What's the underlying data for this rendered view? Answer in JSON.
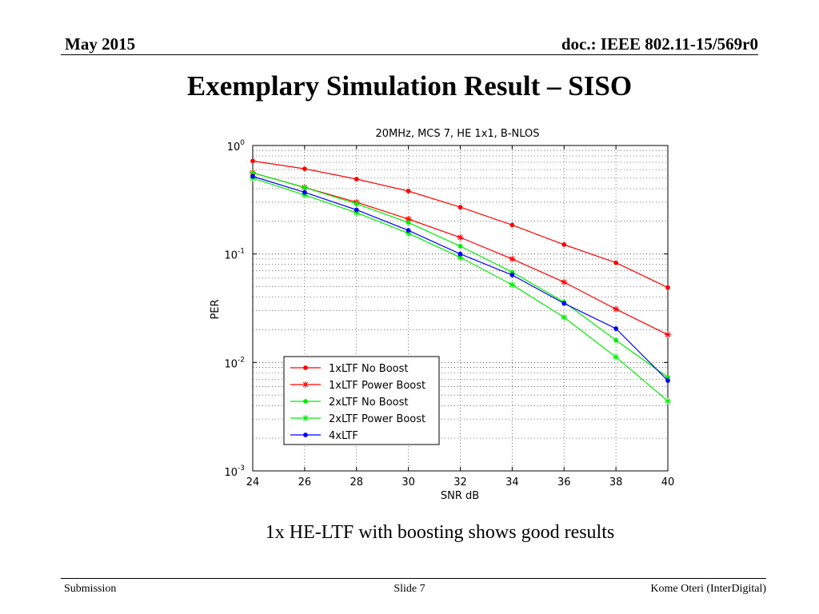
{
  "header": {
    "date": "May 2015",
    "doc_id": "doc.: IEEE 802.11-15/569r0"
  },
  "slide": {
    "title": "Exemplary Simulation Result – SISO",
    "caption": "1x HE-LTF with boosting shows good results"
  },
  "footer": {
    "left": "Submission",
    "center": "Slide 7",
    "right": "Kome Oteri (InterDigital)"
  },
  "chart_data": {
    "type": "line",
    "title": "20MHz, MCS 7, HE 1x1, B-NLOS",
    "xlabel": "SNR dB",
    "ylabel": "PER",
    "x_scale": "linear",
    "y_scale": "log",
    "xlim": [
      24,
      40
    ],
    "ylim": [
      0.001,
      1
    ],
    "grid": true,
    "legend_position": "bottom-left",
    "x_ticks": [
      "24",
      "26",
      "28",
      "30",
      "32",
      "34",
      "36",
      "38",
      "40"
    ],
    "y_ticks": [
      {
        "value": 1,
        "base": "10",
        "exp": "0"
      },
      {
        "value": 0.1,
        "base": "10",
        "exp": "-1"
      },
      {
        "value": 0.01,
        "base": "10",
        "exp": "-2"
      },
      {
        "value": 0.001,
        "base": "10",
        "exp": "-3"
      }
    ],
    "series": [
      {
        "name": "1xLTF No Boost",
        "color": "#ff0000",
        "marker": "dot",
        "x": [
          24,
          26,
          28,
          30,
          32,
          34,
          36,
          38,
          40
        ],
        "y": [
          0.72,
          0.61,
          0.49,
          0.38,
          0.27,
          0.185,
          0.122,
          0.083,
          0.049
        ]
      },
      {
        "name": "1xLTF Power Boost",
        "color": "#ff0000",
        "marker": "star",
        "x": [
          24,
          26,
          28,
          30,
          32,
          34,
          36,
          38,
          40
        ],
        "y": [
          0.56,
          0.41,
          0.3,
          0.21,
          0.142,
          0.09,
          0.055,
          0.031,
          0.018
        ]
      },
      {
        "name": "2xLTF No Boost",
        "color": "#00ee00",
        "marker": "dot",
        "x": [
          24,
          26,
          28,
          30,
          32,
          34,
          36,
          38,
          40
        ],
        "y": [
          0.56,
          0.41,
          0.29,
          0.195,
          0.118,
          0.068,
          0.036,
          0.016,
          0.0073
        ]
      },
      {
        "name": "2xLTF Power Boost",
        "color": "#00ee00",
        "marker": "star",
        "x": [
          24,
          26,
          28,
          30,
          32,
          34,
          36,
          38,
          40
        ],
        "y": [
          0.5,
          0.35,
          0.24,
          0.155,
          0.093,
          0.052,
          0.026,
          0.0112,
          0.0044
        ]
      },
      {
        "name": "4xLTF",
        "color": "#0000ff",
        "marker": "dot",
        "x": [
          24,
          26,
          28,
          30,
          32,
          34,
          36,
          38,
          40
        ],
        "y": [
          0.52,
          0.37,
          0.255,
          0.165,
          0.1,
          0.064,
          0.035,
          0.0205,
          0.0068
        ]
      }
    ]
  }
}
